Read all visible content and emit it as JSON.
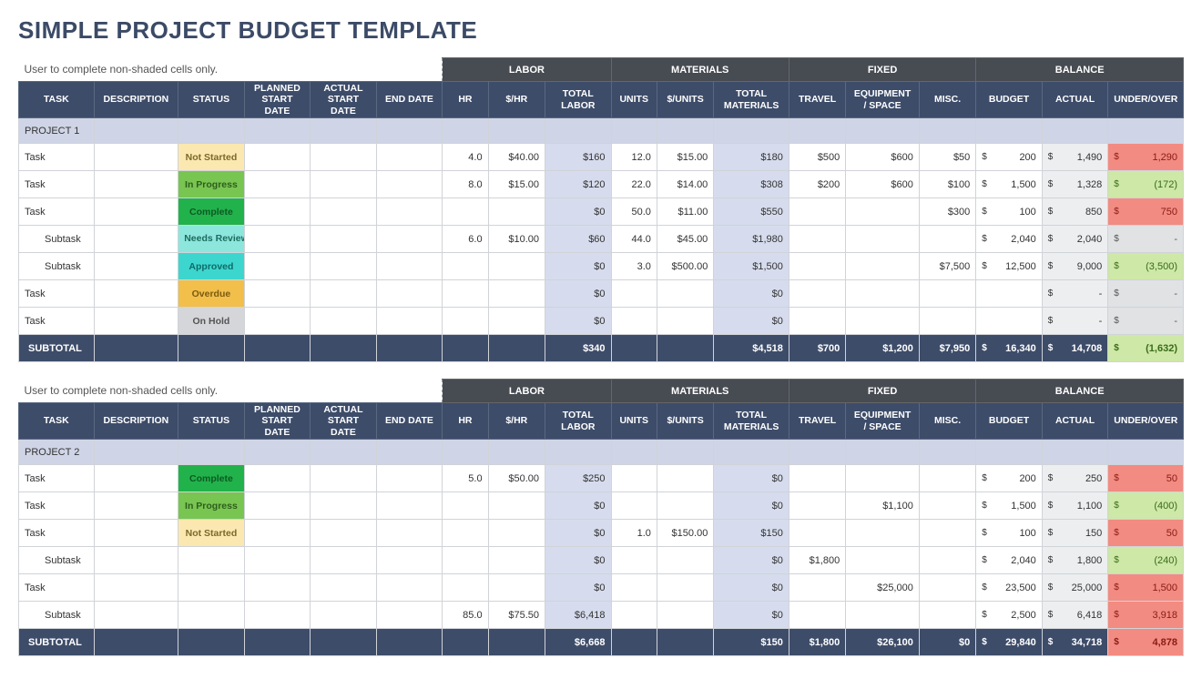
{
  "title": "SIMPLE PROJECT BUDGET TEMPLATE",
  "note": "User to complete non-shaded cells only.",
  "groups": [
    "LABOR",
    "MATERIALS",
    "FIXED",
    "BALANCE"
  ],
  "columns": {
    "task": "TASK",
    "desc": "DESCRIPTION",
    "status": "STATUS",
    "planned": "PLANNED START DATE",
    "actual_start": "ACTUAL START DATE",
    "end": "END DATE",
    "hr": "HR",
    "rate": "$/HR",
    "tot_labor": "TOTAL LABOR",
    "units": "UNITS",
    "unit_cost": "$/UNITS",
    "tot_mat": "TOTAL MATERIALS",
    "travel": "TRAVEL",
    "equip": "EQUIPMENT / SPACE",
    "misc": "MISC.",
    "budget": "BUDGET",
    "actual": "ACTUAL",
    "uo": "UNDER/OVER"
  },
  "col_widths": {
    "task": 82,
    "desc": 92,
    "status": 72,
    "planned": 72,
    "actual_start": 72,
    "end": 72,
    "hr": 50,
    "rate": 62,
    "tot_labor": 72,
    "units": 50,
    "unit_cost": 62,
    "tot_mat": 82,
    "travel": 62,
    "equip": 80,
    "misc": 62,
    "budget": 72,
    "actual": 72,
    "uo": 82
  },
  "status_styles": {
    "Not Started": "st-notstarted",
    "In Progress": "st-inprogress",
    "Complete": "st-complete",
    "Needs Review": "st-needsreview",
    "Approved": "st-approved",
    "Overdue": "st-overdue",
    "On Hold": "st-onhold"
  },
  "colors": {
    "header_dark": "#474b52",
    "header_navy": "#3d4c69",
    "project_row": "#cfd5e6",
    "calc_bg": "#d6dced",
    "actual_bg": "#eceef0",
    "uo_bg": "#e6e8ea",
    "grid": "#d0d3d8",
    "title": "#3b4a66",
    "uo_pos": "#f28b82",
    "uo_neg": "#cde8a7"
  },
  "projects": [
    {
      "name": "PROJECT 1",
      "rows": [
        {
          "task": "Task",
          "sub": false,
          "status": "Not Started",
          "hr": "4.0",
          "rate": "$40.00",
          "tot_labor": "$160",
          "units": "12.0",
          "unit_cost": "$15.00",
          "tot_mat": "$180",
          "travel": "$500",
          "equip": "$600",
          "misc": "$50",
          "budget": "200",
          "actual": "1,490",
          "uo": "1,290",
          "uo_dir": "pos"
        },
        {
          "task": "Task",
          "sub": false,
          "status": "In Progress",
          "hr": "8.0",
          "rate": "$15.00",
          "tot_labor": "$120",
          "units": "22.0",
          "unit_cost": "$14.00",
          "tot_mat": "$308",
          "travel": "$200",
          "equip": "$600",
          "misc": "$100",
          "budget": "1,500",
          "actual": "1,328",
          "uo": "(172)",
          "uo_dir": "neg"
        },
        {
          "task": "Task",
          "sub": false,
          "status": "Complete",
          "hr": "",
          "rate": "",
          "tot_labor": "$0",
          "units": "50.0",
          "unit_cost": "$11.00",
          "tot_mat": "$550",
          "travel": "",
          "equip": "",
          "misc": "$300",
          "budget": "100",
          "actual": "850",
          "uo": "750",
          "uo_dir": "pos"
        },
        {
          "task": "Subtask",
          "sub": true,
          "status": "Needs Review",
          "hr": "6.0",
          "rate": "$10.00",
          "tot_labor": "$60",
          "units": "44.0",
          "unit_cost": "$45.00",
          "tot_mat": "$1,980",
          "travel": "",
          "equip": "",
          "misc": "",
          "budget": "2,040",
          "actual": "2,040",
          "uo": "-",
          "uo_dir": "zero"
        },
        {
          "task": "Subtask",
          "sub": true,
          "status": "Approved",
          "hr": "",
          "rate": "",
          "tot_labor": "$0",
          "units": "3.0",
          "unit_cost": "$500.00",
          "tot_mat": "$1,500",
          "travel": "",
          "equip": "",
          "misc": "$7,500",
          "budget": "12,500",
          "actual": "9,000",
          "uo": "(3,500)",
          "uo_dir": "neg"
        },
        {
          "task": "Task",
          "sub": false,
          "status": "Overdue",
          "hr": "",
          "rate": "",
          "tot_labor": "$0",
          "units": "",
          "unit_cost": "",
          "tot_mat": "$0",
          "travel": "",
          "equip": "",
          "misc": "",
          "budget": "",
          "actual": "-",
          "uo": "-",
          "uo_dir": "zero"
        },
        {
          "task": "Task",
          "sub": false,
          "status": "On Hold",
          "hr": "",
          "rate": "",
          "tot_labor": "$0",
          "units": "",
          "unit_cost": "",
          "tot_mat": "$0",
          "travel": "",
          "equip": "",
          "misc": "",
          "budget": "",
          "actual": "-",
          "uo": "-",
          "uo_dir": "zero"
        }
      ],
      "subtotal": {
        "label": "SUBTOTAL",
        "tot_labor": "$340",
        "tot_mat": "$4,518",
        "travel": "$700",
        "equip": "$1,200",
        "misc": "$7,950",
        "budget": "16,340",
        "actual": "14,708",
        "uo": "(1,632)",
        "uo_dir": "neg"
      }
    },
    {
      "name": "PROJECT 2",
      "rows": [
        {
          "task": "Task",
          "sub": false,
          "status": "Complete",
          "hr": "5.0",
          "rate": "$50.00",
          "tot_labor": "$250",
          "units": "",
          "unit_cost": "",
          "tot_mat": "$0",
          "travel": "",
          "equip": "",
          "misc": "",
          "budget": "200",
          "actual": "250",
          "uo": "50",
          "uo_dir": "pos"
        },
        {
          "task": "Task",
          "sub": false,
          "status": "In Progress",
          "hr": "",
          "rate": "",
          "tot_labor": "$0",
          "units": "",
          "unit_cost": "",
          "tot_mat": "$0",
          "travel": "",
          "equip": "$1,100",
          "misc": "",
          "budget": "1,500",
          "actual": "1,100",
          "uo": "(400)",
          "uo_dir": "neg"
        },
        {
          "task": "Task",
          "sub": false,
          "status": "Not Started",
          "hr": "",
          "rate": "",
          "tot_labor": "$0",
          "units": "1.0",
          "unit_cost": "$150.00",
          "tot_mat": "$150",
          "travel": "",
          "equip": "",
          "misc": "",
          "budget": "100",
          "actual": "150",
          "uo": "50",
          "uo_dir": "pos"
        },
        {
          "task": "Subtask",
          "sub": true,
          "status": "",
          "hr": "",
          "rate": "",
          "tot_labor": "$0",
          "units": "",
          "unit_cost": "",
          "tot_mat": "$0",
          "travel": "$1,800",
          "equip": "",
          "misc": "",
          "budget": "2,040",
          "actual": "1,800",
          "uo": "(240)",
          "uo_dir": "neg"
        },
        {
          "task": "Task",
          "sub": false,
          "status": "",
          "hr": "",
          "rate": "",
          "tot_labor": "$0",
          "units": "",
          "unit_cost": "",
          "tot_mat": "$0",
          "travel": "",
          "equip": "$25,000",
          "misc": "",
          "budget": "23,500",
          "actual": "25,000",
          "uo": "1,500",
          "uo_dir": "pos"
        },
        {
          "task": "Subtask",
          "sub": true,
          "status": "",
          "hr": "85.0",
          "rate": "$75.50",
          "tot_labor": "$6,418",
          "units": "",
          "unit_cost": "",
          "tot_mat": "$0",
          "travel": "",
          "equip": "",
          "misc": "",
          "budget": "2,500",
          "actual": "6,418",
          "uo": "3,918",
          "uo_dir": "pos"
        }
      ],
      "subtotal": {
        "label": "SUBTOTAL",
        "tot_labor": "$6,668",
        "tot_mat": "$150",
        "travel": "$1,800",
        "equip": "$26,100",
        "misc": "$0",
        "budget": "29,840",
        "actual": "34,718",
        "uo": "4,878",
        "uo_dir": "pos"
      }
    }
  ]
}
